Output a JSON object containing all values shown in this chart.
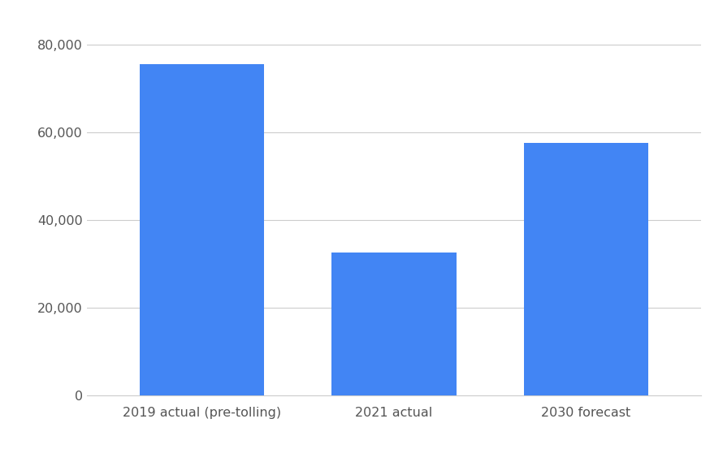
{
  "categories": [
    "2019 actual (pre-tolling)",
    "2021 actual",
    "2030 forecast"
  ],
  "values": [
    75500,
    32500,
    57500
  ],
  "bar_color": "#4285F4",
  "background_color": "#ffffff",
  "ylim": [
    0,
    85000
  ],
  "yticks": [
    0,
    20000,
    40000,
    60000,
    80000
  ],
  "grid_color": "#cccccc",
  "tick_label_color": "#555555",
  "tick_fontsize": 11.5,
  "bar_width": 0.65,
  "figsize": [
    8.9,
    5.53
  ],
  "dpi": 100
}
